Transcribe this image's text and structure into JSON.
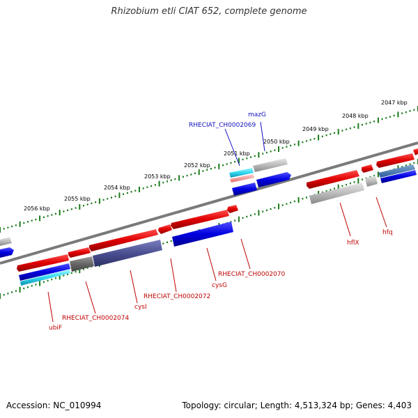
{
  "title": "Rhizobium etli CIAT 652, complete genome",
  "footer": {
    "accession": "Accession: NC_010994",
    "topology": "Topology: circular; Length: 4,513,324 bp; Genes: 4,403"
  },
  "scale": {
    "labels": [
      "2047 kbp",
      "2048 kbp",
      "2049 kbp",
      "2050 kbp",
      "2051 kbp",
      "2052 kbp",
      "2053 kbp",
      "2054 kbp",
      "2055 kbp",
      "2056 kbp"
    ]
  },
  "gene_labels": [
    {
      "text": "mazG",
      "color": "#1010c0"
    },
    {
      "text": "RHECIAT_CH0002069",
      "color": "#1010c0"
    },
    {
      "text": "hflX",
      "color": "#c00000"
    },
    {
      "text": "hfq",
      "color": "#c00000"
    },
    {
      "text": "RHECIAT_CH0002070",
      "color": "#c00000"
    },
    {
      "text": "cysG",
      "color": "#c00000"
    },
    {
      "text": "RHECIAT_CH0002072",
      "color": "#c00000"
    },
    {
      "text": "cysI",
      "color": "#c00000"
    },
    {
      "text": "RHECIAT_CH0002074",
      "color": "#c00000"
    },
    {
      "text": "ubiF",
      "color": "#c00000"
    }
  ],
  "colors": {
    "forward": "#e00000",
    "reverse": "#0000e0",
    "backbone": "#7a7a7a",
    "tick": "#1a7a1a",
    "other": "#bbbbbb",
    "slate": "#4a4f90",
    "cyan": "#30d8f0"
  }
}
